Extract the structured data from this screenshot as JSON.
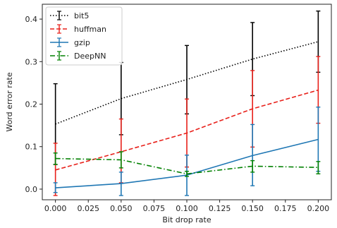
{
  "chart_data": {
    "type": "line",
    "title": "",
    "xlabel": "Bit drop rate",
    "ylabel": "Word error rate",
    "xlim": [
      -0.01,
      0.21
    ],
    "ylim": [
      -0.025,
      0.435
    ],
    "xticks": [
      "0.000",
      "0.025",
      "0.050",
      "0.075",
      "0.100",
      "0.125",
      "0.150",
      "0.175",
      "0.200"
    ],
    "yticks": [
      "0.0",
      "0.1",
      "0.2",
      "0.3",
      "0.4"
    ],
    "grid": false,
    "legend_position": "top-left",
    "x": [
      0.0,
      0.05,
      0.1,
      0.15,
      0.2
    ],
    "series": [
      {
        "name": "bit5",
        "color": "#000000",
        "line_style": "dotted",
        "values": [
          0.153,
          0.213,
          0.258,
          0.306,
          0.347
        ],
        "err_low": [
          0.058,
          0.128,
          0.177,
          0.22,
          0.275
        ],
        "err_high": [
          0.248,
          0.298,
          0.338,
          0.392,
          0.419
        ]
      },
      {
        "name": "huffman",
        "color": "#e8201a",
        "line_style": "dashed",
        "values": [
          0.045,
          0.088,
          0.132,
          0.189,
          0.233
        ],
        "err_low": [
          -0.015,
          0.015,
          0.052,
          0.099,
          0.155
        ],
        "err_high": [
          0.108,
          0.165,
          0.212,
          0.279,
          0.312
        ]
      },
      {
        "name": "gzip",
        "color": "#1f77b4",
        "line_style": "solid",
        "values": [
          0.003,
          0.013,
          0.033,
          0.079,
          0.117
        ],
        "err_low": [
          -0.008,
          -0.015,
          -0.015,
          0.008,
          0.042
        ],
        "err_high": [
          0.015,
          0.04,
          0.08,
          0.152,
          0.193
        ]
      },
      {
        "name": "DeepNN",
        "color": "#008000",
        "line_style": "dashdot",
        "values": [
          0.072,
          0.069,
          0.036,
          0.054,
          0.051
        ],
        "err_low": [
          0.058,
          0.05,
          0.03,
          0.04,
          0.036
        ],
        "err_high": [
          0.085,
          0.088,
          0.042,
          0.067,
          0.065
        ]
      }
    ]
  }
}
